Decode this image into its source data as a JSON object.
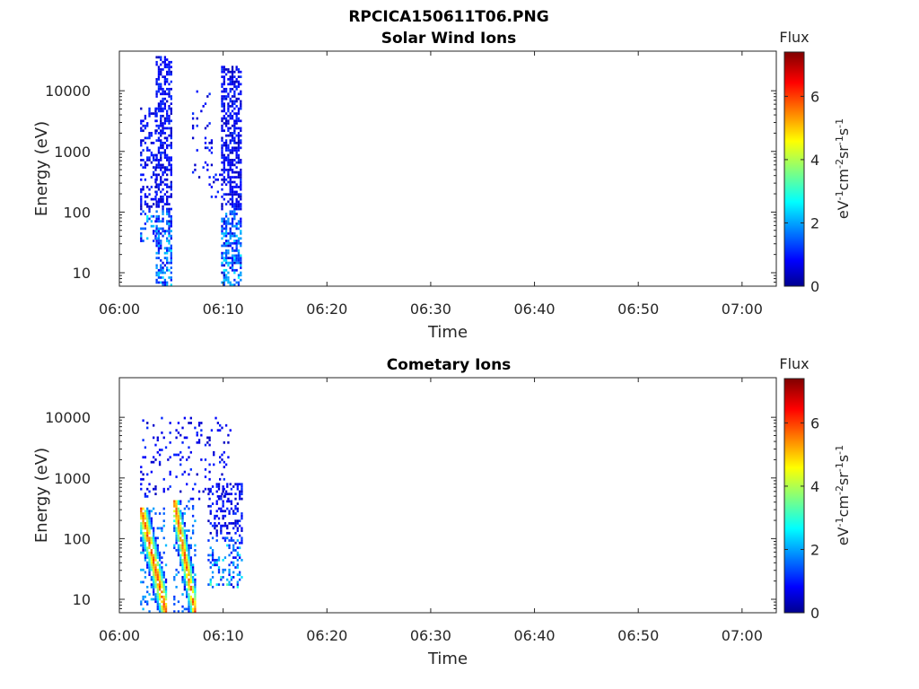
{
  "figure_title": "RPCICA150611T06.PNG",
  "colors": {
    "axis": "#262626",
    "jet_low": "#00008f",
    "jet_cyan": "#00ffff",
    "jet_yellow": "#ffff00",
    "jet_high": "#800000"
  },
  "chart_data": [
    {
      "type": "heatmap",
      "title": "Solar Wind Ions",
      "xlabel": "Time",
      "ylabel": "Energy (eV)",
      "x_ticks": [
        "06:00",
        "06:10",
        "06:20",
        "06:30",
        "06:40",
        "06:50",
        "07:00"
      ],
      "xlim_minutes": [
        0,
        63.3
      ],
      "y_ticks": [
        10,
        100,
        1000,
        10000
      ],
      "y_tick_labels": [
        "10",
        "100",
        "1000",
        "10000"
      ],
      "ylim": [
        6,
        45000
      ],
      "y_scale": "log",
      "grid": false,
      "colorbar": {
        "label": "Flux",
        "units": "eV-1cm-2sr-1s-1",
        "range": [
          0,
          7.4
        ],
        "ticks": [
          0,
          2,
          4,
          6
        ],
        "tick_labels": [
          "0",
          "2",
          "4",
          "6"
        ],
        "colormap": "jet"
      },
      "bursts": [
        {
          "t_start_min": 2.0,
          "t_end_min": 3.5,
          "e_min_ev": 30,
          "e_max_ev": 5000,
          "flux_max": 3.0,
          "density": "sparse"
        },
        {
          "t_start_min": 3.5,
          "t_end_min": 5.1,
          "e_min_ev": 6,
          "e_max_ev": 35000,
          "flux_max": 3.0,
          "density": "dense"
        },
        {
          "t_start_min": 7.0,
          "t_end_min": 8.8,
          "e_min_ev": 300,
          "e_max_ev": 10000,
          "flux_max": 2.5,
          "density": "very sparse"
        },
        {
          "t_start_min": 8.6,
          "t_end_min": 9.6,
          "e_min_ev": 150,
          "e_max_ev": 400,
          "flux_max": 2.5,
          "density": "very sparse"
        },
        {
          "t_start_min": 9.8,
          "t_end_min": 11.7,
          "e_min_ev": 6,
          "e_max_ev": 25000,
          "flux_max": 3.0,
          "density": "dense"
        }
      ]
    },
    {
      "type": "heatmap",
      "title": "Cometary Ions",
      "xlabel": "Time",
      "ylabel": "Energy (eV)",
      "x_ticks": [
        "06:00",
        "06:10",
        "06:20",
        "06:30",
        "06:40",
        "06:50",
        "07:00"
      ],
      "xlim_minutes": [
        0,
        63.3
      ],
      "y_ticks": [
        10,
        100,
        1000,
        10000
      ],
      "y_tick_labels": [
        "10",
        "100",
        "1000",
        "10000"
      ],
      "ylim": [
        6,
        45000
      ],
      "y_scale": "log",
      "grid": false,
      "colorbar": {
        "label": "Flux",
        "units": "eV-1cm-2sr-1s-1",
        "range": [
          0,
          7.4
        ],
        "ticks": [
          0,
          2,
          4,
          6
        ],
        "tick_labels": [
          "0",
          "2",
          "4",
          "6"
        ],
        "colormap": "jet"
      },
      "bursts": [
        {
          "t_start_min": 2.0,
          "t_end_min": 4.5,
          "e_min_ev": 6,
          "e_max_ev": 300,
          "flux_max": 5.8,
          "density": "dense",
          "dispersed": true
        },
        {
          "t_start_min": 5.2,
          "t_end_min": 7.3,
          "e_min_ev": 6,
          "e_max_ev": 400,
          "flux_max": 5.8,
          "density": "dense",
          "dispersed": true
        },
        {
          "t_start_min": 8.5,
          "t_end_min": 11.7,
          "e_min_ev": 15,
          "e_max_ev": 800,
          "flux_max": 3.5,
          "density": "sparse"
        },
        {
          "t_start_min": 2.0,
          "t_end_min": 10.6,
          "e_min_ev": 400,
          "e_max_ev": 10000,
          "flux_max": 2.5,
          "density": "very sparse"
        }
      ]
    }
  ]
}
